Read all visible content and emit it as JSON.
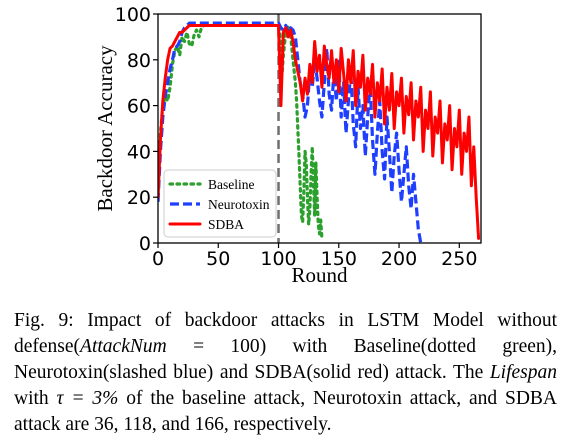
{
  "chart_data": {
    "type": "line",
    "title": "",
    "xlabel": "Round",
    "ylabel": "Backdoor Accuracy",
    "xlim": [
      0,
      268
    ],
    "ylim": [
      0,
      100
    ],
    "xticks": [
      0,
      50,
      100,
      150,
      200,
      250
    ],
    "yticks": [
      0,
      20,
      40,
      60,
      80,
      100
    ],
    "grid": false,
    "legend": "lower-left",
    "vline": {
      "x": 100,
      "style": "dashed",
      "color": "#707070"
    },
    "series": [
      {
        "name": "Baseline",
        "style": "dotted",
        "color": "#2ca02c",
        "x": [
          0,
          2,
          4,
          6,
          8,
          10,
          12,
          14,
          16,
          18,
          20,
          22,
          24,
          26,
          28,
          30,
          32,
          34,
          36,
          38,
          40,
          42,
          44,
          46,
          48,
          50,
          52,
          54,
          56,
          58,
          60,
          62,
          64,
          66,
          68,
          70,
          72,
          74,
          76,
          78,
          80,
          82,
          84,
          86,
          88,
          90,
          92,
          94,
          96,
          98,
          100,
          101,
          102,
          103,
          104,
          106,
          108,
          110,
          112,
          114,
          115,
          116,
          117,
          118,
          119,
          120,
          121,
          122,
          123,
          124,
          125,
          126,
          127,
          128,
          129,
          130,
          131,
          132,
          133,
          134,
          135,
          136
        ],
        "y": [
          22,
          48,
          60,
          64,
          62,
          68,
          78,
          84,
          86,
          82,
          90,
          88,
          92,
          87,
          86,
          91,
          93,
          90,
          94,
          95,
          95,
          95,
          95,
          95,
          95,
          95,
          95,
          95,
          95,
          95,
          95,
          95,
          95,
          95,
          95,
          95,
          95,
          95,
          95,
          95,
          95,
          95,
          95,
          95,
          95,
          95,
          95,
          95,
          95,
          95,
          95,
          92,
          84,
          74,
          82,
          92,
          95,
          91,
          80,
          70,
          62,
          50,
          38,
          25,
          12,
          9,
          22,
          40,
          35,
          20,
          8,
          15,
          30,
          42,
          26,
          12,
          35,
          20,
          8,
          4,
          10,
          2
        ]
      },
      {
        "name": "Neurotoxin",
        "style": "dashed",
        "color": "#1f3fff",
        "x": [
          0,
          2,
          4,
          6,
          8,
          10,
          12,
          14,
          16,
          18,
          20,
          22,
          24,
          26,
          28,
          30,
          32,
          34,
          36,
          38,
          40,
          42,
          44,
          46,
          48,
          50,
          52,
          54,
          56,
          58,
          60,
          62,
          64,
          66,
          68,
          70,
          72,
          74,
          76,
          78,
          80,
          82,
          84,
          86,
          88,
          90,
          92,
          94,
          96,
          98,
          100,
          102,
          104,
          106,
          108,
          110,
          112,
          114,
          116,
          118,
          120,
          122,
          124,
          126,
          128,
          130,
          132,
          134,
          136,
          138,
          140,
          142,
          144,
          146,
          148,
          150,
          152,
          154,
          156,
          158,
          160,
          162,
          164,
          166,
          168,
          170,
          172,
          174,
          176,
          178,
          180,
          182,
          184,
          186,
          188,
          190,
          192,
          194,
          196,
          198,
          200,
          202,
          204,
          206,
          208,
          210,
          212,
          214,
          216,
          218
        ],
        "y": [
          18,
          40,
          55,
          64,
          70,
          76,
          80,
          85,
          86,
          88,
          92,
          94,
          95,
          96,
          96,
          96,
          96,
          96,
          96,
          96,
          96,
          96,
          96,
          96,
          96,
          96,
          96,
          96,
          96,
          96,
          96,
          96,
          96,
          96,
          96,
          96,
          96,
          96,
          96,
          96,
          96,
          96,
          96,
          96,
          96,
          96,
          96,
          96,
          96,
          96,
          96,
          94,
          93,
          95,
          92,
          94,
          93,
          90,
          80,
          70,
          65,
          55,
          60,
          75,
          68,
          80,
          72,
          62,
          55,
          70,
          85,
          65,
          58,
          75,
          62,
          80,
          55,
          70,
          48,
          62,
          75,
          52,
          42,
          68,
          50,
          60,
          38,
          55,
          70,
          45,
          30,
          48,
          62,
          40,
          28,
          55,
          40,
          22,
          38,
          48,
          32,
          18,
          30,
          42,
          25,
          15,
          30,
          18,
          6,
          0
        ],
        "yhint": "0"
      },
      {
        "name": "SDBA",
        "style": "solid",
        "color": "#ff0000",
        "x": [
          0,
          2,
          4,
          6,
          8,
          10,
          12,
          14,
          16,
          18,
          20,
          22,
          24,
          26,
          28,
          30,
          32,
          34,
          36,
          38,
          40,
          42,
          44,
          46,
          48,
          50,
          52,
          54,
          56,
          58,
          60,
          62,
          64,
          66,
          68,
          70,
          72,
          74,
          76,
          78,
          80,
          82,
          84,
          86,
          88,
          90,
          92,
          94,
          96,
          98,
          100,
          102,
          104,
          106,
          108,
          110,
          112,
          114,
          116,
          118,
          120,
          122,
          124,
          126,
          128,
          130,
          132,
          134,
          136,
          138,
          140,
          142,
          144,
          146,
          148,
          150,
          152,
          154,
          156,
          158,
          160,
          162,
          164,
          166,
          168,
          170,
          172,
          174,
          176,
          178,
          180,
          182,
          184,
          186,
          188,
          190,
          192,
          194,
          196,
          198,
          200,
          202,
          204,
          206,
          208,
          210,
          212,
          214,
          216,
          218,
          220,
          222,
          224,
          226,
          228,
          230,
          232,
          234,
          236,
          238,
          240,
          242,
          244,
          246,
          248,
          250,
          252,
          254,
          256,
          258,
          260,
          262,
          264,
          266
        ],
        "y": [
          20,
          45,
          62,
          72,
          80,
          85,
          86,
          88,
          90,
          92,
          92,
          93,
          94,
          95,
          95,
          95,
          95,
          95,
          95,
          95,
          95,
          95,
          95,
          95,
          95,
          95,
          95,
          95,
          95,
          95,
          95,
          95,
          95,
          95,
          95,
          95,
          95,
          95,
          95,
          95,
          95,
          95,
          95,
          95,
          95,
          95,
          95,
          95,
          95,
          95,
          95,
          60,
          92,
          94,
          90,
          93,
          88,
          80,
          75,
          70,
          62,
          72,
          65,
          78,
          70,
          88,
          75,
          82,
          68,
          86,
          78,
          72,
          84,
          70,
          80,
          66,
          85,
          74,
          62,
          80,
          70,
          84,
          60,
          75,
          68,
          82,
          58,
          72,
          65,
          78,
          55,
          70,
          62,
          76,
          52,
          68,
          58,
          74,
          50,
          66,
          60,
          72,
          48,
          64,
          56,
          70,
          45,
          62,
          55,
          68,
          40,
          58,
          50,
          66,
          38,
          55,
          48,
          62,
          35,
          52,
          45,
          60,
          32,
          50,
          42,
          58,
          30,
          48,
          40,
          55,
          25,
          42,
          20,
          2
        ]
      }
    ]
  },
  "caption": {
    "prefix": "Fig. 9: Impact of backdoor attacks in LSTM Model without defense(",
    "attacknum_var": "AttackNum",
    "attacknum_eq": " = 100",
    "mid1": ") with Baseline(dotted green), Neurotoxin(slashed blue) and SDBA(solid red) attack. The ",
    "lifespan_var": "Lifespan",
    "mid2": " with ",
    "tau_expr": "τ = 3%",
    "suffix": " of the baseline attack, Neurotoxin attack, and SDBA attack are 36, 118, and 166, respectively."
  }
}
